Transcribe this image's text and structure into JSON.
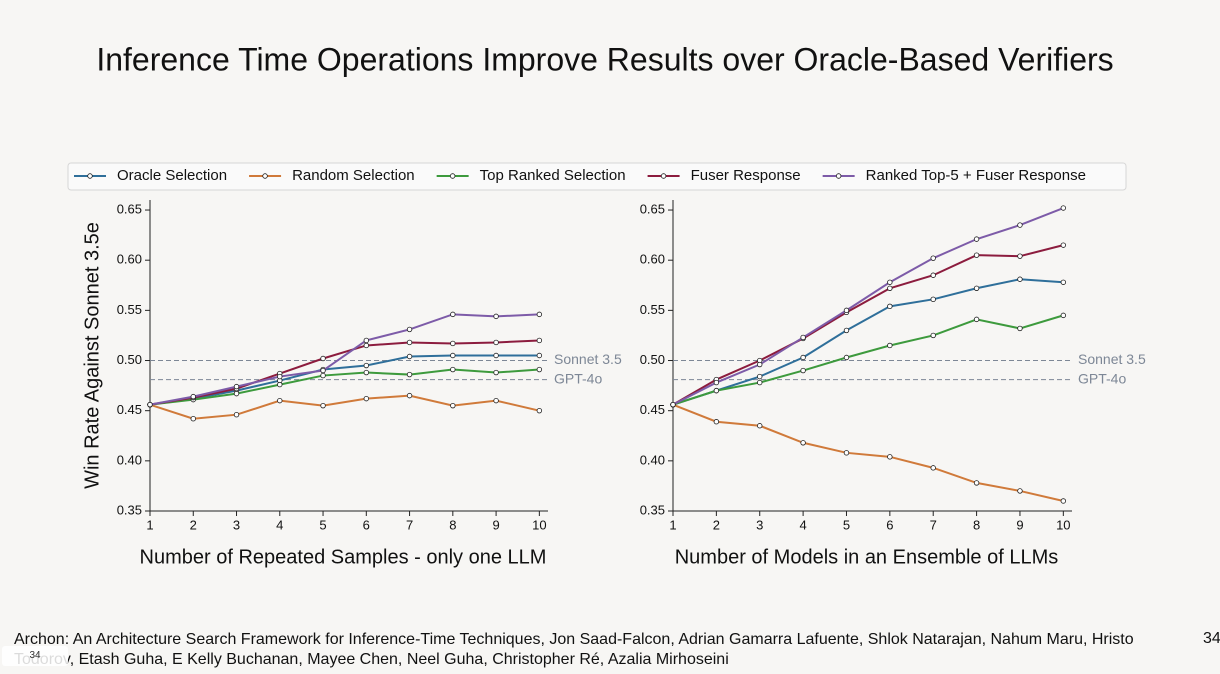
{
  "slide": {
    "title": "Inference Time Operations Improve Results over Oracle-Based Verifiers",
    "citation": "Archon: An Architecture Search Framework for Inference-Time Techniques, Jon Saad-Falcon, Adrian Gamarra Lafuente, Shlok Natarajan, Nahum Maru, Hristo Todorov, Etash Guha, E Kelly Buchanan, Mayee Chen, Neel Guha, Christopher Ré, Azalia Mirhoseini",
    "page_number": "34",
    "nav_page": "34"
  },
  "chart_data": [
    {
      "type": "line",
      "ylabel": "Win Rate Against Sonnet 3.5e",
      "xlabel": "Number of Repeated Samples - only one LLM",
      "x": [
        1,
        2,
        3,
        4,
        5,
        6,
        7,
        8,
        9,
        10
      ],
      "xlim": [
        1,
        10.2
      ],
      "ylim": [
        0.35,
        0.66
      ],
      "xticks": [
        1,
        2,
        3,
        4,
        5,
        6,
        7,
        8,
        9,
        10
      ],
      "yticks": [
        0.35,
        {
          "value": 0.4,
          "label": "0.40"
        },
        0.45,
        {
          "value": 0.5,
          "label": "0.50"
        },
        0.55,
        {
          "value": 0.6,
          "label": "0.60"
        },
        0.65
      ],
      "hlines": [
        {
          "value": 0.5,
          "label": "Sonnet 3.5"
        },
        {
          "value": 0.481,
          "label": "GPT-4o"
        }
      ],
      "series": [
        {
          "name": "Oracle Selection",
          "color": "#2f6f9a",
          "values": [
            0.456,
            0.462,
            0.47,
            0.48,
            0.491,
            0.495,
            0.504,
            0.505,
            0.505,
            0.505
          ]
        },
        {
          "name": "Random Selection",
          "color": "#d07a3a",
          "values": [
            0.456,
            0.442,
            0.446,
            0.46,
            0.455,
            0.462,
            0.465,
            0.455,
            0.46,
            0.45
          ]
        },
        {
          "name": "Top Ranked Selection",
          "color": "#3d9a3d",
          "values": [
            0.456,
            0.461,
            0.467,
            0.476,
            0.485,
            0.488,
            0.486,
            0.491,
            0.488,
            0.491
          ]
        },
        {
          "name": "Fuser Response",
          "color": "#8c1c3e",
          "values": [
            0.456,
            0.463,
            0.472,
            0.487,
            0.502,
            0.515,
            0.518,
            0.517,
            0.518,
            0.52
          ]
        },
        {
          "name": "Ranked Top-5 + Fuser Response",
          "color": "#7d5ba8",
          "values": [
            0.456,
            0.464,
            0.474,
            0.484,
            0.49,
            0.52,
            0.531,
            0.546,
            0.544,
            0.546
          ]
        }
      ]
    },
    {
      "type": "line",
      "xlabel": "Number of Models in an Ensemble of LLMs",
      "x": [
        1,
        2,
        3,
        4,
        5,
        6,
        7,
        8,
        9,
        10
      ],
      "xlim": [
        1,
        10.2
      ],
      "ylim": [
        0.35,
        0.66
      ],
      "xticks": [
        1,
        2,
        3,
        4,
        5,
        6,
        7,
        8,
        9,
        10
      ],
      "yticks": [
        0.35,
        {
          "value": 0.4,
          "label": "0.40"
        },
        0.45,
        {
          "value": 0.5,
          "label": "0.50"
        },
        0.55,
        {
          "value": 0.6,
          "label": "0.60"
        },
        0.65
      ],
      "hlines": [
        {
          "value": 0.5,
          "label": "Sonnet 3.5"
        },
        {
          "value": 0.481,
          "label": "GPT-4o"
        }
      ],
      "series": [
        {
          "color": "#2f6f9a",
          "values": [
            0.456,
            0.47,
            0.484,
            0.503,
            0.53,
            0.554,
            0.561,
            0.572,
            0.581,
            0.578
          ]
        },
        {
          "color": "#d07a3a",
          "values": [
            0.456,
            0.439,
            0.435,
            0.418,
            0.408,
            0.404,
            0.393,
            0.378,
            0.37,
            0.36
          ]
        },
        {
          "color": "#3d9a3d",
          "values": [
            0.456,
            0.47,
            0.478,
            0.49,
            0.503,
            0.515,
            0.525,
            0.541,
            0.532,
            0.545
          ]
        },
        {
          "color": "#8c1c3e",
          "values": [
            0.456,
            0.481,
            0.5,
            0.522,
            0.548,
            0.572,
            0.585,
            0.605,
            0.604,
            0.615
          ]
        },
        {
          "color": "#7d5ba8",
          "values": [
            0.456,
            0.478,
            0.496,
            0.523,
            0.55,
            0.578,
            0.602,
            0.621,
            0.635,
            0.652
          ]
        }
      ]
    }
  ]
}
